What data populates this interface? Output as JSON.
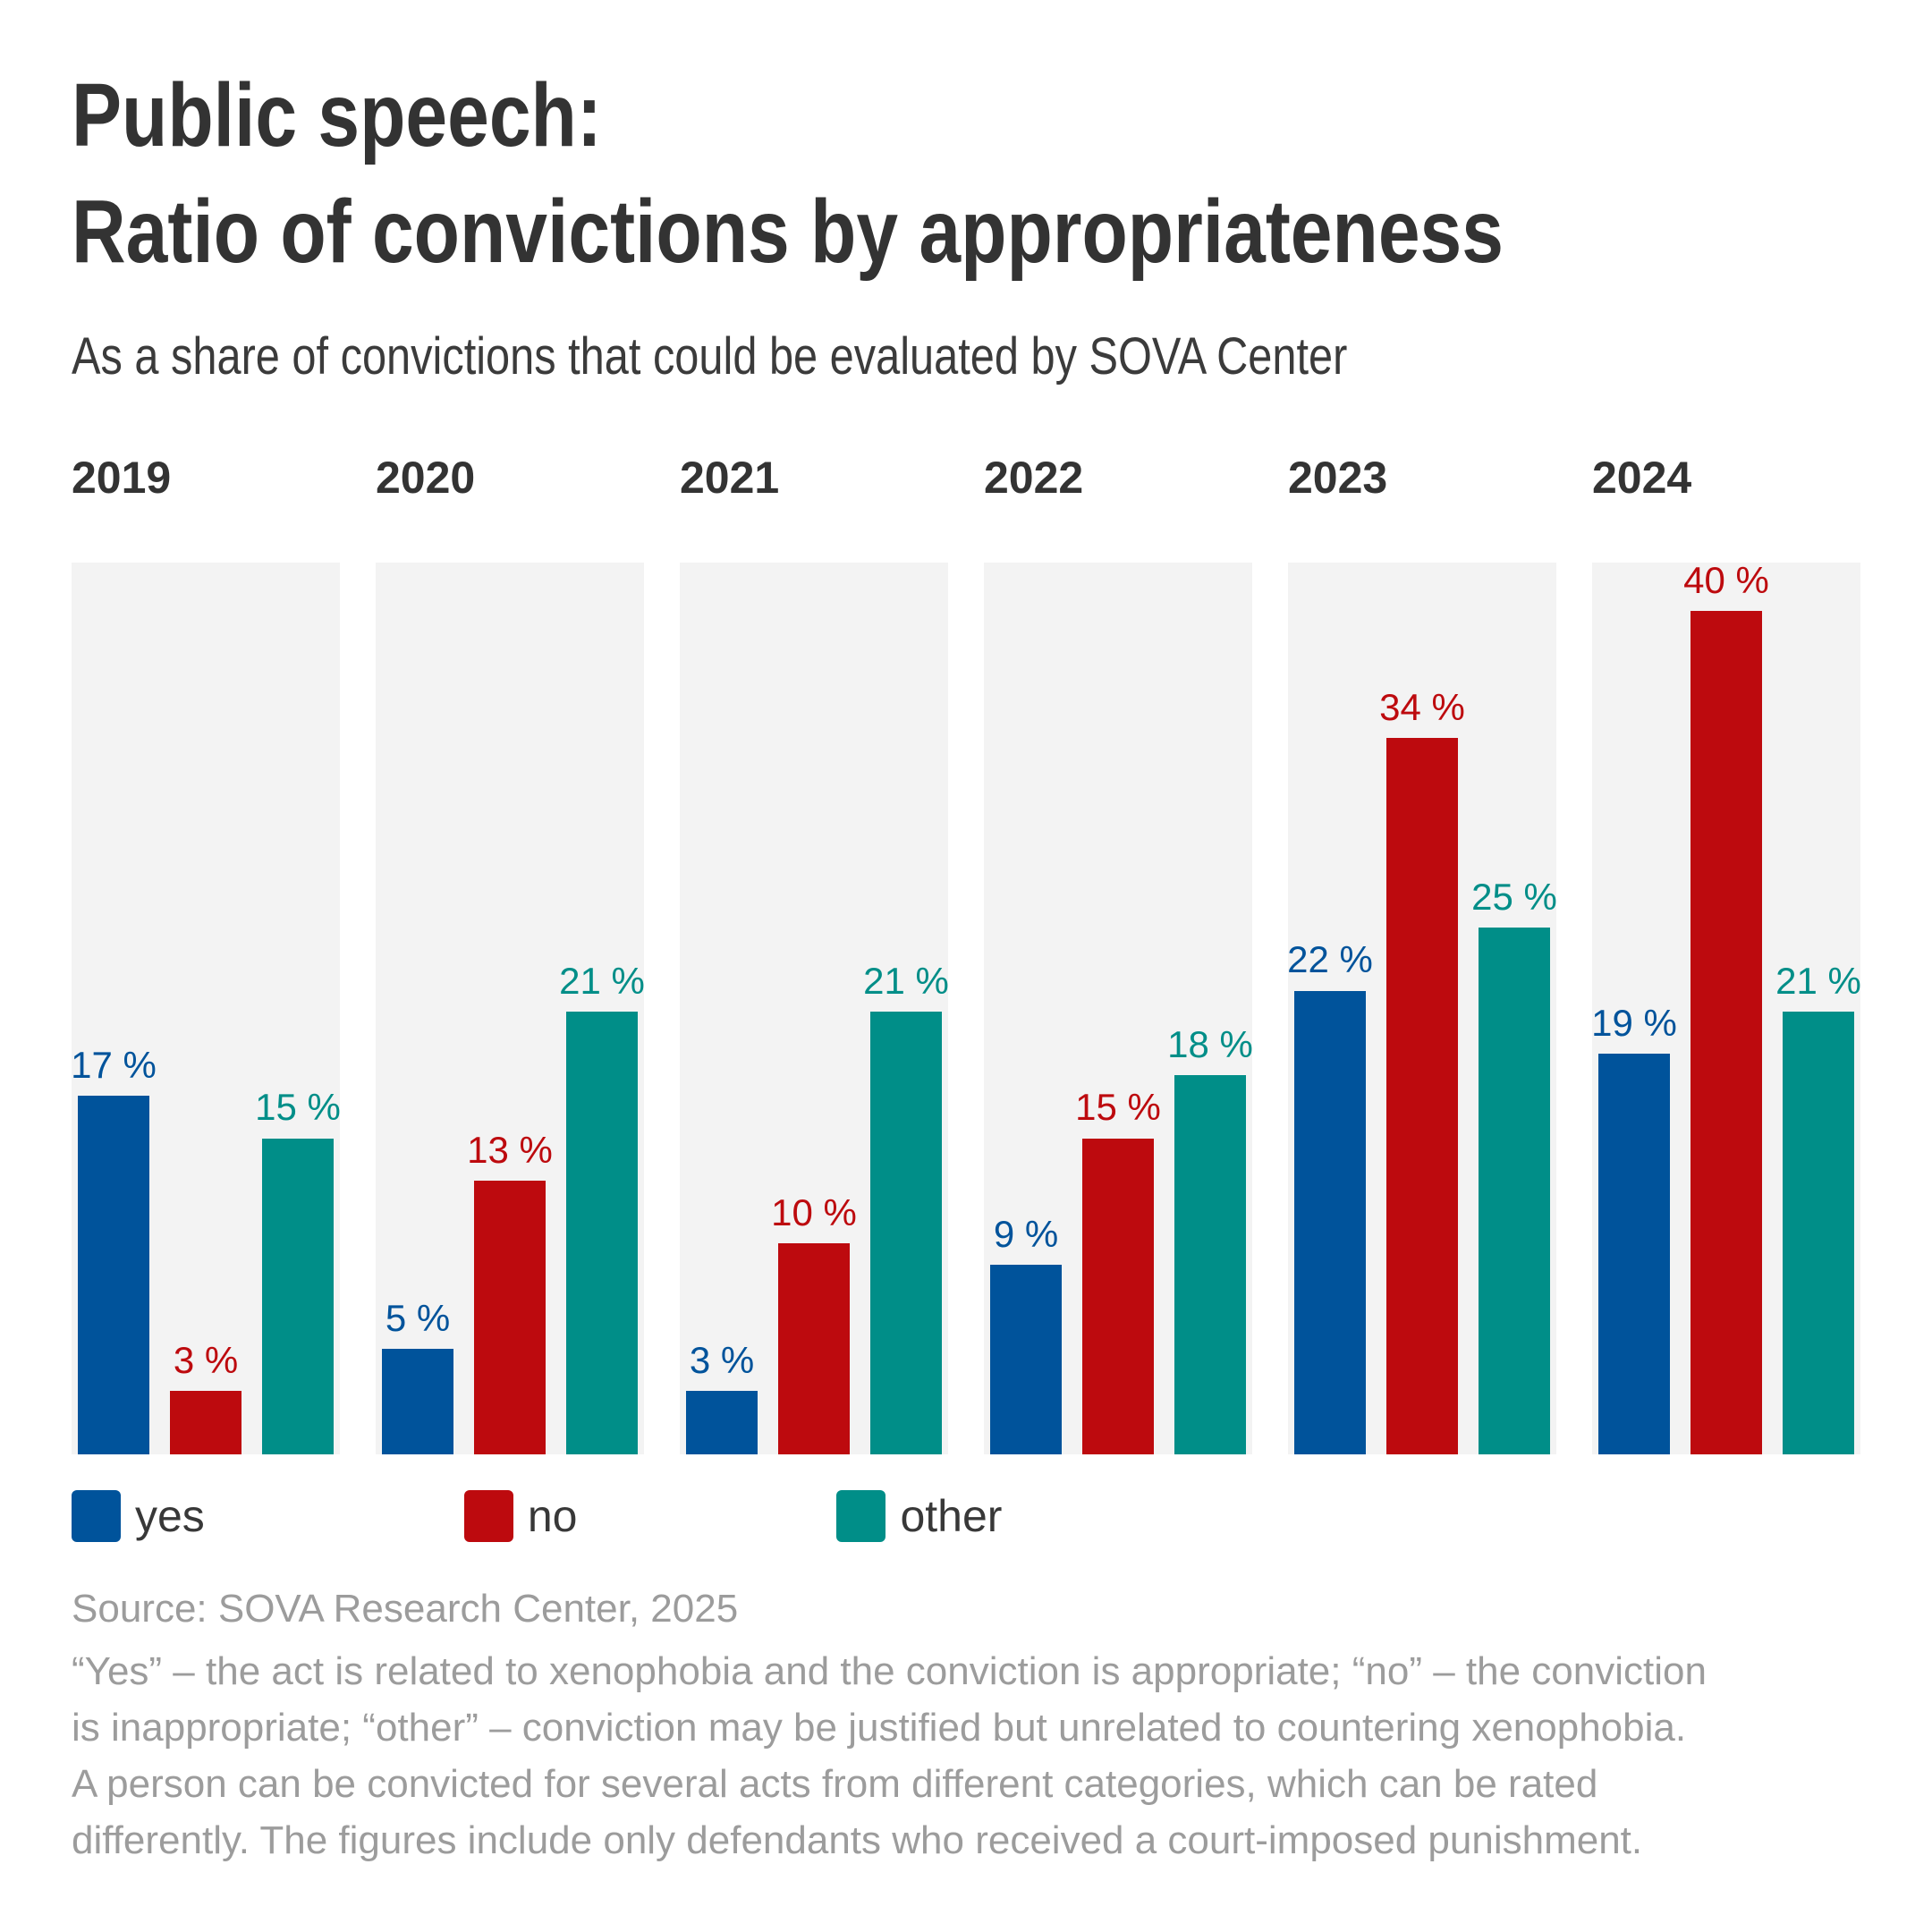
{
  "header": {
    "title_line1": "Public speech:",
    "title_line2": "Ratio of convictions by appropriateness",
    "subtitle": "As a share of convictions that could be evaluated by SOVA Center"
  },
  "chart_data": {
    "type": "bar",
    "title": "Public speech: Ratio of convictions by appropriateness",
    "subtitle": "As a share of convictions that could be evaluated by SOVA Center",
    "categories": [
      "2019",
      "2020",
      "2021",
      "2022",
      "2023",
      "2024"
    ],
    "series": [
      {
        "name": "yes",
        "color": "#00539b",
        "values": [
          17,
          5,
          3,
          9,
          22,
          19
        ]
      },
      {
        "name": "no",
        "color": "#bd0a0e",
        "values": [
          3,
          13,
          10,
          15,
          34,
          40
        ]
      },
      {
        "name": "other",
        "color": "#008e88",
        "values": [
          15,
          21,
          21,
          18,
          25,
          21
        ]
      }
    ],
    "unit": "%",
    "label_suffix": " %",
    "ylim": [
      0,
      42.3
    ],
    "grid": false,
    "legend_position": "bottom",
    "panel_background": "#f3f3f3"
  },
  "legend": {
    "items": [
      {
        "label": "yes",
        "color": "#00539b"
      },
      {
        "label": "no",
        "color": "#bd0a0e"
      },
      {
        "label": "other",
        "color": "#008e88"
      }
    ]
  },
  "footer": {
    "source": "Source: SOVA Research Center, 2025",
    "note_lines": [
      "“Yes” – the act is related to xenophobia and the conviction is appropriate; “no” – the conviction",
      "is inappropriate; “other” – conviction may be justified but unrelated to countering xenophobia.",
      "A person can be convicted for several acts from different categories, which can be rated",
      "differently. The figures include only defendants who received a court-imposed punishment."
    ]
  }
}
